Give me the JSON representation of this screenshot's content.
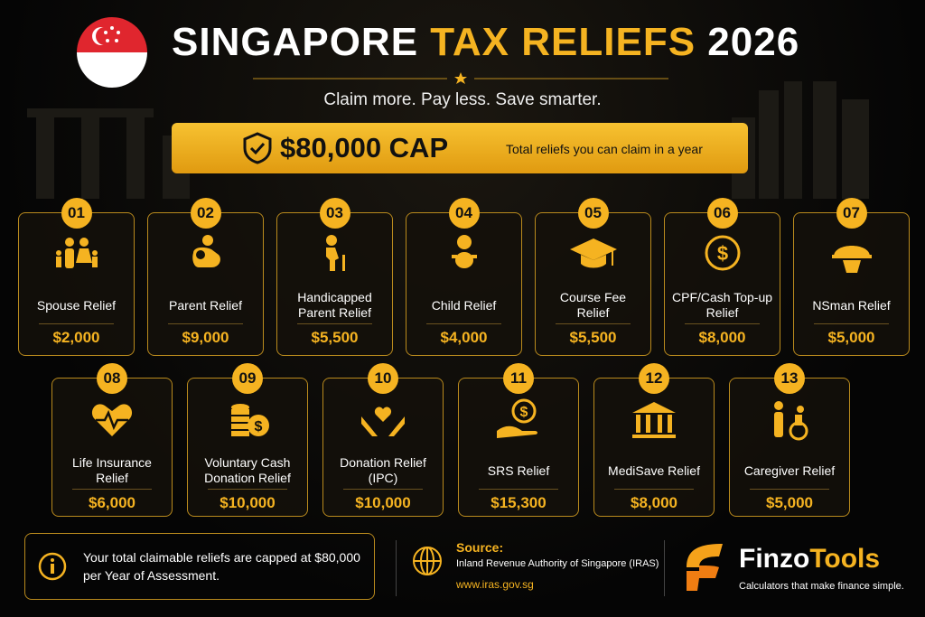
{
  "header": {
    "title_start": "SINGAPORE",
    "title_highlight": "TAX RELIEFS",
    "title_year": "2026",
    "subtitle": "Claim more. Pay less. Save smarter."
  },
  "cap": {
    "amount": "$80,000 CAP",
    "text": "Total reliefs you can claim in a year"
  },
  "reliefs": [
    {
      "number": "01",
      "name": "Spouse Relief",
      "amount": "$2,000"
    },
    {
      "number": "02",
      "name": "Parent Relief",
      "amount": "$9,000"
    },
    {
      "number": "03",
      "name": "Handicapped Parent Relief",
      "amount": "$5,500"
    },
    {
      "number": "04",
      "name": "Child Relief",
      "amount": "$4,000"
    },
    {
      "number": "05",
      "name": "Course Fee Relief",
      "amount": "$5,500"
    },
    {
      "number": "06",
      "name": "CPF/Cash Top-up Relief",
      "amount": "$8,000"
    },
    {
      "number": "07",
      "name": "NSman Relief",
      "amount": "$5,000"
    },
    {
      "number": "08",
      "name": "Life Insurance Relief",
      "amount": "$6,000"
    },
    {
      "number": "09",
      "name": "Voluntary Cash Donation Relief",
      "amount": "$10,000"
    },
    {
      "number": "10",
      "name": "Donation Relief (IPC)",
      "amount": "$10,000"
    },
    {
      "number": "11",
      "name": "SRS Relief",
      "amount": "$15,300"
    },
    {
      "number": "12",
      "name": "MediSave Relief",
      "amount": "$8,000"
    },
    {
      "number": "13",
      "name": "Caregiver Relief",
      "amount": "$5,000"
    }
  ],
  "footer": {
    "note": "Your total claimable reliefs are capped at $80,000 per Year of Assessment.",
    "source_label": "Source:",
    "source": "Inland Revenue Authority of Singapore (IRAS)",
    "url": "www.iras.gov.sg",
    "brand_start": "Finzo",
    "brand_end": "Tools",
    "tagline": "Calculators that make finance simple."
  }
}
